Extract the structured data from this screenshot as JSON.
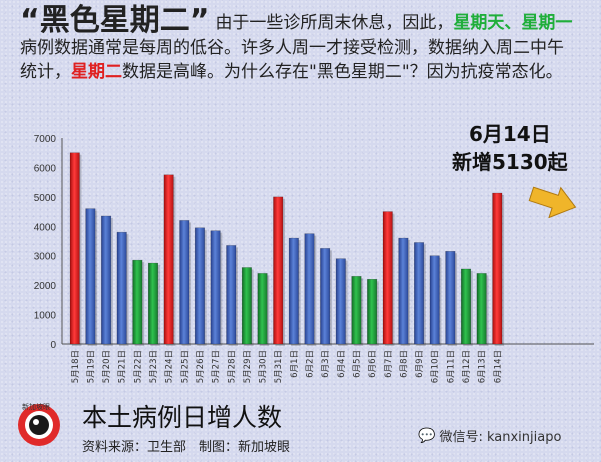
{
  "headline": {
    "big_title": "“黑色星期二”",
    "p1": "由于一些诊所周末休息，因此，",
    "sunday": "星期天、",
    "monday": "星期一",
    "p2": "病例数据通常是每周的低谷。许多人周一才接受检测，数据纳入周二中午统计，",
    "tuesday": "星期二",
    "p3": "数据是高峰。为什么存在\"黑色星期二\"？因为抗疫常态化。"
  },
  "annotation": {
    "line1": "6月14日",
    "line2": "新增5130起"
  },
  "logo_text": "新加坡眼",
  "footer": {
    "title": "本土病例日增人数",
    "source": "资料来源：卫生部　制图：新加坡眼",
    "wechat": "微信号: kanxinjiapo"
  },
  "colors": {
    "tuesday": "#e51b1b",
    "weekend": "#1f9d3a",
    "weekday": "#3f62b5",
    "highlight": "#e02020",
    "sunday_monday": "#1fae3a"
  },
  "chart_data": {
    "type": "bar",
    "title": "本土病例日增人数",
    "xlabel": "",
    "ylabel": "",
    "ylim": [
      0,
      7000
    ],
    "yticks": [
      0,
      1000,
      2000,
      3000,
      4000,
      5000,
      6000,
      7000
    ],
    "grid": false,
    "categories": [
      "5月18日",
      "5月19日",
      "5月20日",
      "5月21日",
      "5月22日",
      "5月23日",
      "5月24日",
      "5月25日",
      "5月26日",
      "5月27日",
      "5月28日",
      "5月29日",
      "5月30日",
      "5月31日",
      "6月1日",
      "6月2日",
      "6月3日",
      "6月4日",
      "6月5日",
      "6月6日",
      "6月7日",
      "6月8日",
      "6月9日",
      "6月10日",
      "6月11日",
      "6月12日",
      "6月13日",
      "6月14日"
    ],
    "values": [
      6500,
      4600,
      4350,
      3800,
      2850,
      2750,
      5750,
      4200,
      3950,
      3850,
      3350,
      2600,
      2400,
      5000,
      3600,
      3750,
      3250,
      2900,
      2300,
      2200,
      4500,
      3600,
      3450,
      3000,
      3150,
      2550,
      2400,
      5130
    ],
    "bar_type": [
      "tue",
      "wd",
      "wd",
      "wd",
      "we",
      "we",
      "tue",
      "wd",
      "wd",
      "wd",
      "wd",
      "we",
      "we",
      "tue",
      "wd",
      "wd",
      "wd",
      "wd",
      "we",
      "we",
      "tue",
      "wd",
      "wd",
      "wd",
      "wd",
      "we",
      "we",
      "tue"
    ]
  }
}
